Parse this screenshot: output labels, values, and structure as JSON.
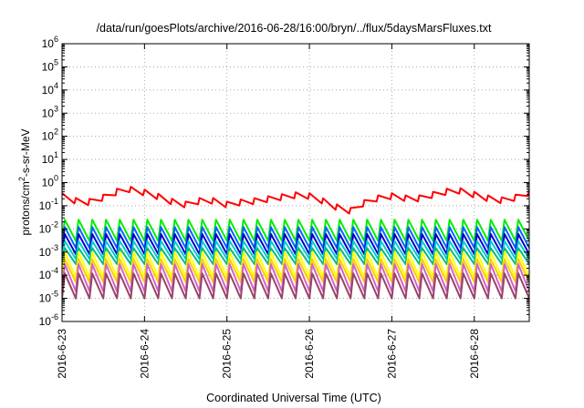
{
  "chart_data": {
    "type": "line",
    "title": "/data/run/goesPlots/archive/2016-06-28/16:00/bryn/../flux/5daysMarsFluxes.txt",
    "xlabel": "Coordinated Universal Time (UTC)",
    "ylabel": {
      "prefix": "protons/cm",
      "sup": "2",
      "suffix": "-s-sr-MeV"
    },
    "yscale": "log",
    "ylim": [
      1e-06,
      1000000.0
    ],
    "yticks": [
      {
        "base": "10",
        "exp": "-6"
      },
      {
        "base": "10",
        "exp": "-5"
      },
      {
        "base": "10",
        "exp": "-4"
      },
      {
        "base": "10",
        "exp": "-3"
      },
      {
        "base": "10",
        "exp": "-2"
      },
      {
        "base": "10",
        "exp": "-1"
      },
      {
        "base": "10",
        "exp": "0"
      },
      {
        "base": "10",
        "exp": "1"
      },
      {
        "base": "10",
        "exp": "2"
      },
      {
        "base": "10",
        "exp": "3"
      },
      {
        "base": "10",
        "exp": "4"
      },
      {
        "base": "10",
        "exp": "5"
      },
      {
        "base": "10",
        "exp": "6"
      }
    ],
    "xlim": [
      "2016-06-23",
      "2016-06-28T16:00"
    ],
    "xticks": [
      "2016-6-23",
      "2016-6-24",
      "2016-6-25",
      "2016-6-26",
      "2016-6-27",
      "2016-6-28"
    ],
    "grid": true,
    "legend": "none",
    "colors": [
      "#ff0000",
      "#00ee00",
      "#0066ff",
      "#0000cc",
      "#00cccc",
      "#00bb88",
      "#ffff00",
      "#ffcc00",
      "#cc66cc",
      "#994466"
    ],
    "series": [
      {
        "type": "smooth",
        "color": "#ff0000",
        "points": [
          [
            "2016-06-23T00:00",
            0.35
          ],
          [
            "2016-06-23T03:00",
            0.25
          ],
          [
            "2016-06-23T06:00",
            0.16
          ],
          [
            "2016-06-23T09:00",
            0.22
          ],
          [
            "2016-06-23T12:00",
            0.3
          ],
          [
            "2016-06-23T15:00",
            0.45
          ],
          [
            "2016-06-23T18:00",
            0.8
          ],
          [
            "2016-06-23T21:00",
            0.6
          ],
          [
            "2016-06-24T00:00",
            0.5
          ],
          [
            "2016-06-24T03:00",
            0.38
          ],
          [
            "2016-06-24T06:00",
            0.25
          ],
          [
            "2016-06-24T09:00",
            0.18
          ],
          [
            "2016-06-24T12:00",
            0.15
          ],
          [
            "2016-06-24T15:00",
            0.2
          ],
          [
            "2016-06-24T18:00",
            0.25
          ],
          [
            "2016-06-24T21:00",
            0.2
          ],
          [
            "2016-06-25T00:00",
            0.15
          ],
          [
            "2016-06-25T03:00",
            0.18
          ],
          [
            "2016-06-25T06:00",
            0.2
          ],
          [
            "2016-06-25T09:00",
            0.22
          ],
          [
            "2016-06-25T12:00",
            0.26
          ],
          [
            "2016-06-25T15:00",
            0.3
          ],
          [
            "2016-06-25T18:00",
            0.35
          ],
          [
            "2016-06-25T21:00",
            0.4
          ],
          [
            "2016-06-26T00:00",
            0.35
          ],
          [
            "2016-06-26T03:00",
            0.25
          ],
          [
            "2016-06-26T06:00",
            0.15
          ],
          [
            "2016-06-26T09:00",
            0.1
          ],
          [
            "2016-06-26T12:00",
            0.08
          ],
          [
            "2016-06-26T15:00",
            0.15
          ],
          [
            "2016-06-26T18:00",
            0.25
          ],
          [
            "2016-06-26T21:00",
            0.3
          ],
          [
            "2016-06-27T00:00",
            0.35
          ],
          [
            "2016-06-27T03:00",
            0.3
          ],
          [
            "2016-06-27T06:00",
            0.25
          ],
          [
            "2016-06-27T09:00",
            0.3
          ],
          [
            "2016-06-27T12:00",
            0.4
          ],
          [
            "2016-06-27T15:00",
            0.5
          ],
          [
            "2016-06-27T18:00",
            0.65
          ],
          [
            "2016-06-27T21:00",
            0.55
          ],
          [
            "2016-06-28T00:00",
            0.4
          ],
          [
            "2016-06-28T03:00",
            0.3
          ],
          [
            "2016-06-28T06:00",
            0.25
          ],
          [
            "2016-06-28T09:00",
            0.22
          ],
          [
            "2016-06-28T12:00",
            0.3
          ],
          [
            "2016-06-28T16:00",
            0.5
          ]
        ],
        "sawtooth_drop_factor": 1.8
      },
      {
        "type": "sawtooth",
        "color": "#00ee00",
        "high": 0.025,
        "low": 0.003,
        "period_hours": 4
      },
      {
        "type": "sawtooth",
        "color": "#0066ff",
        "high": 0.012,
        "low": 0.0015,
        "period_hours": 4
      },
      {
        "type": "sawtooth",
        "color": "#0000cc",
        "high": 0.006,
        "low": 0.0008,
        "period_hours": 4
      },
      {
        "type": "sawtooth",
        "color": "#00cccc",
        "high": 0.003,
        "low": 0.0005,
        "period_hours": 4
      },
      {
        "type": "sawtooth",
        "color": "#00bb88",
        "high": 0.0015,
        "low": 0.0003,
        "period_hours": 4
      },
      {
        "type": "sawtooth",
        "color": "#ffff00",
        "high": 0.001,
        "low": 8e-05,
        "period_hours": 4
      },
      {
        "type": "sawtooth",
        "color": "#ffcc00",
        "high": 0.0005,
        "low": 5e-05,
        "period_hours": 4
      },
      {
        "type": "sawtooth",
        "color": "#cc66cc",
        "high": 0.0003,
        "low": 2e-05,
        "period_hours": 4
      },
      {
        "type": "sawtooth",
        "color": "#994466",
        "high": 0.00012,
        "low": 1e-05,
        "period_hours": 4
      }
    ]
  }
}
